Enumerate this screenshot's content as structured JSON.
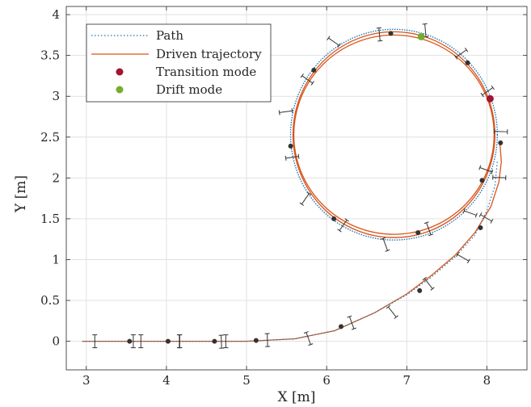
{
  "chart_data": {
    "type": "line",
    "xlabel": "X [m]",
    "ylabel": "Y [m]",
    "xlim": [
      2.75,
      8.5
    ],
    "ylim": [
      -0.35,
      4.1
    ],
    "xticks": [
      "3",
      "4",
      "5",
      "6",
      "7",
      "8"
    ],
    "yticks": [
      "0",
      "0.5",
      "1",
      "1.5",
      "2",
      "2.5",
      "3",
      "3.5",
      "4"
    ],
    "grid": true,
    "legend_position": "top-left",
    "colors": {
      "path": "#1f77b4",
      "driven": "#d95319",
      "transition": "#a2142f",
      "drift": "#77ac30",
      "markers": "#333333"
    },
    "legend": [
      {
        "label": "Path",
        "style": "dotted-line",
        "color": "#1f77b4"
      },
      {
        "label": "Driven trajectory",
        "style": "solid-line",
        "color": "#d95319"
      },
      {
        "label": "Transition mode",
        "style": "marker",
        "color": "#a2142f"
      },
      {
        "label": "Drift mode",
        "style": "marker",
        "color": "#77ac30"
      }
    ],
    "circle_path": {
      "center": [
        6.84,
        2.53
      ],
      "radius": 1.29
    },
    "driven_circle_loops": [
      {
        "center": [
          6.84,
          2.53
        ],
        "rx": 1.26,
        "ry": 1.26
      },
      {
        "center": [
          6.84,
          2.53
        ],
        "rx": 1.25,
        "ry": 1.22
      }
    ],
    "path_approach": [
      [
        2.95,
        0.0
      ],
      [
        5.0,
        0.0
      ],
      [
        5.6,
        0.03
      ],
      [
        6.1,
        0.13
      ],
      [
        6.6,
        0.35
      ],
      [
        7.0,
        0.57
      ],
      [
        7.3,
        0.78
      ],
      [
        7.6,
        1.03
      ],
      [
        7.85,
        1.3
      ],
      [
        8.0,
        1.6
      ],
      [
        8.1,
        1.9
      ],
      [
        8.13,
        2.2
      ]
    ],
    "driven_approach": [
      [
        2.95,
        0.0
      ],
      [
        5.0,
        0.0
      ],
      [
        5.6,
        0.03
      ],
      [
        6.1,
        0.13
      ],
      [
        6.6,
        0.35
      ],
      [
        7.0,
        0.58
      ],
      [
        7.3,
        0.8
      ],
      [
        7.6,
        1.05
      ],
      [
        7.85,
        1.33
      ],
      [
        8.05,
        1.65
      ],
      [
        8.15,
        1.95
      ],
      [
        8.18,
        2.2
      ],
      [
        8.16,
        2.45
      ]
    ],
    "waypoints": [
      {
        "x": 3.54,
        "y": 0.0,
        "angle": 0
      },
      {
        "x": 4.02,
        "y": 0.0,
        "angle": 0
      },
      {
        "x": 4.6,
        "y": 0.0,
        "angle": 0
      },
      {
        "x": 5.12,
        "y": 0.01,
        "angle": 2
      },
      {
        "x": 6.18,
        "y": 0.18,
        "angle": 20
      },
      {
        "x": 7.16,
        "y": 0.62,
        "angle": 38
      },
      {
        "x": 7.92,
        "y": 1.39,
        "angle": 60
      },
      {
        "x": 8.17,
        "y": 2.43,
        "angle": 88
      },
      {
        "x": 7.94,
        "y": 1.97,
        "angle": 70
      },
      {
        "x": 7.14,
        "y": 1.33,
        "angle": 20
      },
      {
        "x": 6.09,
        "y": 1.5,
        "angle": -35
      },
      {
        "x": 5.55,
        "y": 2.39,
        "angle": -82
      },
      {
        "x": 5.84,
        "y": 3.32,
        "angle": -125
      },
      {
        "x": 6.8,
        "y": 3.77,
        "angle": -175
      },
      {
        "x": 7.76,
        "y": 3.41,
        "angle": 125
      }
    ],
    "transition_point": {
      "x": 8.04,
      "y": 2.97
    },
    "drift_point": {
      "x": 7.18,
      "y": 3.73
    }
  }
}
